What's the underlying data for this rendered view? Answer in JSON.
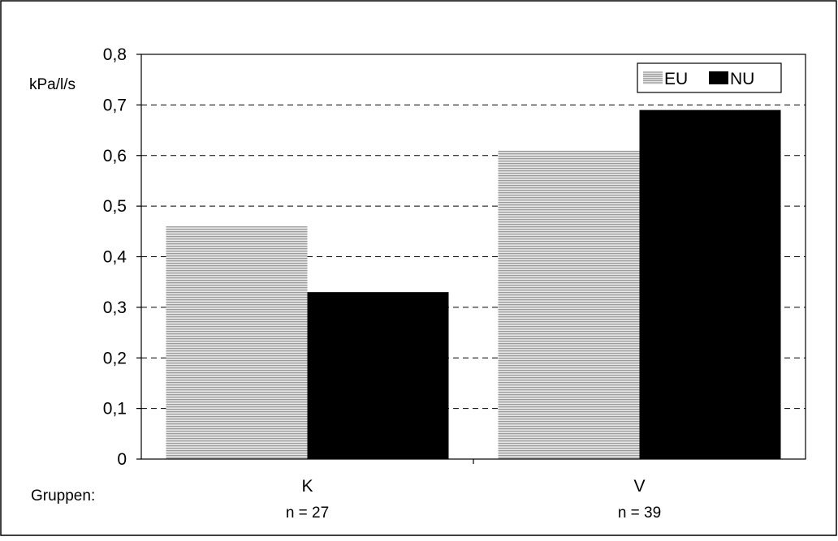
{
  "chart_data": {
    "type": "bar",
    "ylabel": "kPa/l/s",
    "ylim": [
      0,
      0.8
    ],
    "yticks": [
      "0",
      "0,1",
      "0,2",
      "0,3",
      "0,4",
      "0,5",
      "0,6",
      "0,7",
      "0,8"
    ],
    "ytick_values": [
      0,
      0.1,
      0.2,
      0.3,
      0.4,
      0.5,
      0.6,
      0.7,
      0.8
    ],
    "xaxis_prefix": "Gruppen:",
    "categories": [
      "K",
      "V"
    ],
    "category_notes": [
      "n = 27",
      "n = 39"
    ],
    "series": [
      {
        "name": "EU",
        "values": [
          0.46,
          0.61
        ],
        "color": "#bdbdbd",
        "pattern": "horizontal-lines"
      },
      {
        "name": "NU",
        "values": [
          0.33,
          0.69
        ],
        "color": "#000000",
        "pattern": "solid"
      }
    ],
    "grid": "horizontal-dashed",
    "legend": "top-right"
  }
}
